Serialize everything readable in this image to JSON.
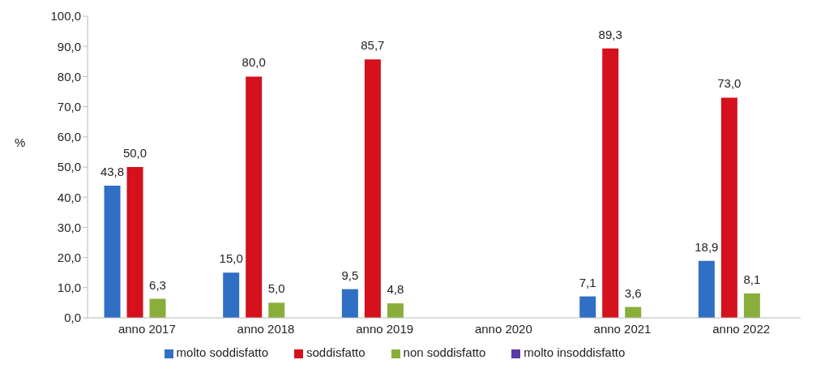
{
  "chart_data": {
    "type": "bar",
    "ylabel": "%",
    "categories": [
      "anno 2017",
      "anno 2018",
      "anno 2019",
      "anno 2020",
      "anno 2021",
      "anno 2022"
    ],
    "series": [
      {
        "name": "molto soddisfatto",
        "color": "#2f6fc4",
        "values": [
          43.8,
          15.0,
          9.5,
          null,
          7.1,
          18.9
        ],
        "value_labels": [
          "43,8",
          "15,0",
          "9,5",
          null,
          "7,1",
          "18,9"
        ]
      },
      {
        "name": "soddisfatto",
        "color": "#d4111c",
        "values": [
          50.0,
          80.0,
          85.7,
          null,
          89.3,
          73.0
        ],
        "value_labels": [
          "50,0",
          "80,0",
          "85,7",
          null,
          "89,3",
          "73,0"
        ]
      },
      {
        "name": "non soddisfatto",
        "color": "#8aae3a",
        "values": [
          6.3,
          5.0,
          4.8,
          null,
          3.6,
          8.1
        ],
        "value_labels": [
          "6,3",
          "5,0",
          "4,8",
          null,
          "3,6",
          "8,1"
        ]
      },
      {
        "name": "molto insoddisfatto",
        "color": "#5a3aa6",
        "values": [
          null,
          null,
          null,
          null,
          null,
          null
        ],
        "value_labels": [
          null,
          null,
          null,
          null,
          null,
          null
        ]
      }
    ],
    "ylim": [
      0,
      100
    ],
    "yticks": [
      {
        "value": 0,
        "label": "0,0"
      },
      {
        "value": 10,
        "label": "10,0"
      },
      {
        "value": 20,
        "label": "20,0"
      },
      {
        "value": 30,
        "label": "30,0"
      },
      {
        "value": 40,
        "label": "40,0"
      },
      {
        "value": 50,
        "label": "50,0"
      },
      {
        "value": 60,
        "label": "60,0"
      },
      {
        "value": 70,
        "label": "70,0"
      },
      {
        "value": 80,
        "label": "80,0"
      },
      {
        "value": 90,
        "label": "90,0"
      },
      {
        "value": 100,
        "label": "100,0"
      }
    ],
    "grid": false,
    "legend": "bottom"
  }
}
